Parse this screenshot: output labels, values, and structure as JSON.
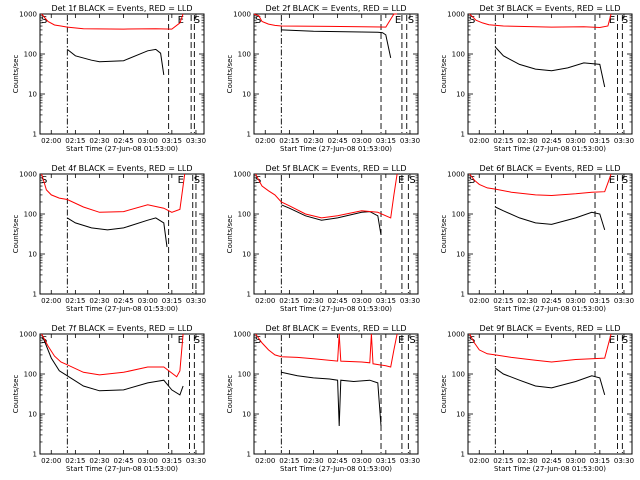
{
  "chart_data": [
    {
      "type": "line",
      "title": "Det 1f BLACK = Events, RED = LLD",
      "xlabel": "Start Time (27-Jun-08 01:53:00)",
      "ylabel": "Counts/sec",
      "yscale": "log",
      "ylim": [
        1,
        1000
      ],
      "xlim": [
        "01:53",
        "03:35"
      ],
      "xticks": [
        "02:00",
        "02:15",
        "02:30",
        "02:45",
        "03:00",
        "03:15",
        "03:30"
      ],
      "yticks": [
        "1",
        "10",
        "100",
        "1000"
      ],
      "markers": [
        {
          "label": "S",
          "x": "01:53"
        },
        {
          "label": "E",
          "x": "03:18"
        },
        {
          "label": "S",
          "x": "03:28"
        }
      ],
      "vlines": [
        {
          "x": "02:10",
          "style": "dashdot"
        },
        {
          "x": "03:13",
          "style": "dash"
        },
        {
          "x": "03:27",
          "style": "dash"
        },
        {
          "x": "03:29",
          "style": "dash"
        }
      ],
      "series": [
        {
          "color": "#000000",
          "x": [
            "02:10",
            "02:15",
            "02:25",
            "02:30",
            "02:45",
            "03:00",
            "03:05",
            "03:08",
            "03:10"
          ],
          "values": [
            130,
            90,
            70,
            64,
            68,
            120,
            130,
            105,
            30
          ]
        },
        {
          "color": "#ff0000",
          "x": [
            "01:54",
            "01:58",
            "02:02",
            "02:06",
            "02:10",
            "02:20",
            "02:45",
            "03:05",
            "03:15",
            "03:20",
            "03:22"
          ],
          "values": [
            1000,
            650,
            530,
            500,
            470,
            430,
            420,
            430,
            420,
            600,
            1000
          ]
        }
      ]
    },
    {
      "type": "line",
      "title": "Det 2f BLACK = Events, RED = LLD",
      "xlabel": "Start Time (27-Jun-08 01:53:00)",
      "ylabel": "Counts/sec",
      "yscale": "log",
      "ylim": [
        1,
        1000
      ],
      "xlim": [
        "01:53",
        "03:35"
      ],
      "xticks": [
        "02:00",
        "02:15",
        "02:30",
        "02:45",
        "03:00",
        "03:15",
        "03:30"
      ],
      "yticks": [
        "1",
        "10",
        "100",
        "1000"
      ],
      "markers": [
        {
          "label": "S",
          "x": "01:53"
        },
        {
          "label": "E",
          "x": "03:20"
        },
        {
          "label": "S",
          "x": "03:28"
        }
      ],
      "vlines": [
        {
          "x": "02:10",
          "style": "dashdot"
        },
        {
          "x": "03:12",
          "style": "dash"
        },
        {
          "x": "03:25",
          "style": "dash"
        },
        {
          "x": "03:28",
          "style": "dash"
        }
      ],
      "series": [
        {
          "color": "#000000",
          "x": [
            "02:10",
            "02:30",
            "02:50",
            "03:10",
            "03:13",
            "03:15",
            "03:18"
          ],
          "values": [
            400,
            370,
            360,
            350,
            340,
            300,
            80
          ]
        },
        {
          "color": "#ff0000",
          "x": [
            "01:53",
            "01:56",
            "01:58",
            "02:02",
            "02:06",
            "02:10",
            "02:40",
            "03:00",
            "03:15",
            "03:20",
            "03:22"
          ],
          "values": [
            1000,
            900,
            650,
            560,
            520,
            500,
            490,
            480,
            470,
            1000,
            1000
          ]
        }
      ]
    },
    {
      "type": "line",
      "title": "Det 3f BLACK = Events, RED = LLD",
      "xlabel": "Start Time (27-Jun-08 01:53:00)",
      "ylabel": "Counts/sec",
      "yscale": "log",
      "ylim": [
        1,
        1000
      ],
      "xlim": [
        "01:53",
        "03:35"
      ],
      "xticks": [
        "02:00",
        "02:15",
        "02:30",
        "02:45",
        "03:00",
        "03:15",
        "03:30"
      ],
      "yticks": [
        "1",
        "10",
        "100",
        "1000"
      ],
      "markers": [
        {
          "label": "S",
          "x": "01:53"
        },
        {
          "label": "E",
          "x": "03:20"
        },
        {
          "label": "S",
          "x": "03:28"
        }
      ],
      "vlines": [
        {
          "x": "02:10",
          "style": "dashdot"
        },
        {
          "x": "03:12",
          "style": "dash"
        },
        {
          "x": "03:26",
          "style": "dash"
        },
        {
          "x": "03:29",
          "style": "dash"
        }
      ],
      "series": [
        {
          "color": "#000000",
          "x": [
            "02:10",
            "02:15",
            "02:25",
            "02:35",
            "02:45",
            "02:55",
            "03:05",
            "03:15",
            "03:18"
          ],
          "values": [
            150,
            90,
            55,
            42,
            38,
            45,
            60,
            55,
            15
          ]
        },
        {
          "color": "#ff0000",
          "x": [
            "01:54",
            "01:58",
            "02:02",
            "02:06",
            "02:15",
            "02:45",
            "03:05",
            "03:15",
            "03:20",
            "03:22"
          ],
          "values": [
            1000,
            700,
            600,
            540,
            500,
            470,
            480,
            460,
            500,
            1000
          ]
        }
      ]
    },
    {
      "type": "line",
      "title": "Det 4f BLACK = Events, RED = LLD",
      "xlabel": "Start Time (27-Jun-08 01:53:00)",
      "ylabel": "Counts/sec",
      "yscale": "log",
      "ylim": [
        1,
        1000
      ],
      "xlim": [
        "01:53",
        "03:35"
      ],
      "xticks": [
        "02:00",
        "02:15",
        "02:30",
        "02:45",
        "03:00",
        "03:15",
        "03:30"
      ],
      "yticks": [
        "1",
        "10",
        "100",
        "1000"
      ],
      "markers": [
        {
          "label": "S",
          "x": "01:53"
        },
        {
          "label": "E",
          "x": "03:18"
        },
        {
          "label": "S",
          "x": "03:28"
        }
      ],
      "vlines": [
        {
          "x": "02:10",
          "style": "dashdot"
        },
        {
          "x": "03:13",
          "style": "dash"
        },
        {
          "x": "03:28",
          "style": "dash"
        },
        {
          "x": "03:30",
          "style": "dash"
        }
      ],
      "series": [
        {
          "color": "#000000",
          "x": [
            "02:10",
            "02:15",
            "02:25",
            "02:35",
            "02:45",
            "03:00",
            "03:05",
            "03:10",
            "03:12"
          ],
          "values": [
            80,
            60,
            45,
            40,
            45,
            70,
            80,
            60,
            15
          ]
        },
        {
          "color": "#ff0000",
          "x": [
            "01:54",
            "01:57",
            "02:00",
            "02:05",
            "02:10",
            "02:20",
            "02:30",
            "02:45",
            "03:00",
            "03:10",
            "03:15",
            "03:20",
            "03:23"
          ],
          "values": [
            1000,
            400,
            300,
            250,
            230,
            150,
            110,
            115,
            170,
            140,
            110,
            130,
            1000
          ]
        }
      ]
    },
    {
      "type": "line",
      "title": "Det 5f BLACK = Events, RED = LLD",
      "xlabel": "Start Time (27-Jun-08 01:53:00)",
      "ylabel": "Counts/sec",
      "yscale": "log",
      "ylim": [
        1,
        1000
      ],
      "xlim": [
        "01:53",
        "03:35"
      ],
      "xticks": [
        "02:00",
        "02:15",
        "02:30",
        "02:45",
        "03:00",
        "03:15",
        "03:30"
      ],
      "yticks": [
        "1",
        "10",
        "100",
        "1000"
      ],
      "markers": [
        {
          "label": "S",
          "x": "01:53"
        },
        {
          "label": "E",
          "x": "03:22"
        },
        {
          "label": "S",
          "x": "03:29"
        }
      ],
      "vlines": [
        {
          "x": "02:10",
          "style": "dashdot"
        },
        {
          "x": "03:12",
          "style": "dash"
        },
        {
          "x": "03:25",
          "style": "dash"
        },
        {
          "x": "03:29",
          "style": "dash"
        }
      ],
      "series": [
        {
          "color": "#000000",
          "x": [
            "02:10",
            "02:15",
            "02:25",
            "02:35",
            "02:45",
            "03:00",
            "03:05",
            "03:10",
            "03:12"
          ],
          "values": [
            170,
            140,
            90,
            70,
            80,
            110,
            115,
            90,
            30
          ]
        },
        {
          "color": "#ff0000",
          "x": [
            "01:54",
            "01:56",
            "01:58",
            "02:02",
            "02:06",
            "02:10",
            "02:15",
            "02:25",
            "02:35",
            "02:45",
            "03:00",
            "03:10",
            "03:18",
            "03:20",
            "03:22"
          ],
          "values": [
            1000,
            700,
            500,
            380,
            300,
            200,
            160,
            100,
            80,
            90,
            120,
            110,
            80,
            300,
            1000
          ]
        }
      ]
    },
    {
      "type": "line",
      "title": "Det 6f BLACK = Events, RED = LLD",
      "xlabel": "Start Time (27-Jun-08 01:53:00)",
      "ylabel": "Counts/sec",
      "yscale": "log",
      "ylim": [
        1,
        1000
      ],
      "xlim": [
        "01:53",
        "03:35"
      ],
      "xticks": [
        "02:00",
        "02:15",
        "02:30",
        "02:45",
        "03:00",
        "03:15",
        "03:30"
      ],
      "yticks": [
        "1",
        "10",
        "100",
        "1000"
      ],
      "markers": [
        {
          "label": "S",
          "x": "01:53"
        },
        {
          "label": "E",
          "x": "03:20"
        },
        {
          "label": "S",
          "x": "03:28"
        }
      ],
      "vlines": [
        {
          "x": "02:10",
          "style": "dashdot"
        },
        {
          "x": "03:12",
          "style": "dash"
        },
        {
          "x": "03:26",
          "style": "dash"
        },
        {
          "x": "03:29",
          "style": "dash"
        }
      ],
      "series": [
        {
          "color": "#000000",
          "x": [
            "02:10",
            "02:15",
            "02:25",
            "02:35",
            "02:45",
            "03:00",
            "03:10",
            "03:15",
            "03:18"
          ],
          "values": [
            150,
            120,
            80,
            60,
            55,
            80,
            110,
            100,
            40
          ]
        },
        {
          "color": "#ff0000",
          "x": [
            "01:54",
            "01:57",
            "02:00",
            "02:05",
            "02:10",
            "02:20",
            "02:35",
            "02:45",
            "03:00",
            "03:10",
            "03:18",
            "03:20",
            "03:22"
          ],
          "values": [
            1000,
            700,
            550,
            450,
            420,
            350,
            300,
            290,
            320,
            350,
            360,
            600,
            1000
          ]
        }
      ]
    },
    {
      "type": "line",
      "title": "Det 7f BLACK = Events, RED = LLD",
      "xlabel": "Start Time (27-Jun-08 01:53:00)",
      "ylabel": "Counts/sec",
      "yscale": "log",
      "ylim": [
        1,
        1000
      ],
      "xlim": [
        "01:53",
        "03:35"
      ],
      "xticks": [
        "02:00",
        "02:15",
        "02:30",
        "02:45",
        "03:00",
        "03:15",
        "03:30"
      ],
      "yticks": [
        "1",
        "10",
        "100",
        "1000"
      ],
      "markers": [
        {
          "label": "S",
          "x": "01:53"
        },
        {
          "label": "E",
          "x": "03:18"
        },
        {
          "label": "S",
          "x": "03:28"
        }
      ],
      "vlines": [
        {
          "x": "02:10",
          "style": "dashdot"
        },
        {
          "x": "03:13",
          "style": "dash"
        },
        {
          "x": "03:26",
          "style": "dash"
        },
        {
          "x": "03:29",
          "style": "dash"
        }
      ],
      "series": [
        {
          "color": "#000000",
          "x": [
            "01:55",
            "02:00",
            "02:05",
            "02:10",
            "02:20",
            "02:30",
            "02:45",
            "03:00",
            "03:10",
            "03:15",
            "03:20",
            "03:22"
          ],
          "values": [
            800,
            250,
            120,
            90,
            50,
            38,
            40,
            60,
            70,
            40,
            30,
            50
          ]
        },
        {
          "color": "#ff0000",
          "x": [
            "01:54",
            "01:58",
            "02:02",
            "02:06",
            "02:10",
            "02:20",
            "02:30",
            "02:45",
            "03:00",
            "03:10",
            "03:18",
            "03:20",
            "03:22"
          ],
          "values": [
            1000,
            500,
            280,
            200,
            170,
            110,
            95,
            110,
            150,
            150,
            85,
            120,
            1000
          ]
        }
      ]
    },
    {
      "type": "line",
      "title": "Det 8f BLACK = Events, RED = LLD",
      "xlabel": "Start Time (27-Jun-08 01:53:00)",
      "ylabel": "Counts/sec",
      "yscale": "log",
      "ylim": [
        1,
        1000
      ],
      "xlim": [
        "01:53",
        "03:35"
      ],
      "xticks": [
        "02:00",
        "02:15",
        "02:30",
        "02:45",
        "03:00",
        "03:15",
        "03:30"
      ],
      "yticks": [
        "1",
        "10",
        "100",
        "1000"
      ],
      "markers": [
        {
          "label": "S",
          "x": "01:53"
        },
        {
          "label": "E",
          "x": "03:22"
        },
        {
          "label": "S",
          "x": "03:29"
        }
      ],
      "vlines": [
        {
          "x": "02:10",
          "style": "dashdot"
        },
        {
          "x": "03:12",
          "style": "dash"
        },
        {
          "x": "03:25",
          "style": "dash"
        },
        {
          "x": "03:29",
          "style": "dash"
        }
      ],
      "series": [
        {
          "color": "#000000",
          "x": [
            "02:10",
            "02:20",
            "02:30",
            "02:40",
            "02:45",
            "02:46",
            "02:47",
            "02:55",
            "03:05",
            "03:10",
            "03:12"
          ],
          "values": [
            110,
            90,
            80,
            75,
            70,
            5,
            70,
            65,
            70,
            60,
            5
          ]
        },
        {
          "color": "#ff0000",
          "x": [
            "01:54",
            "01:58",
            "02:02",
            "02:06",
            "02:10",
            "02:20",
            "02:30",
            "02:45",
            "02:46",
            "02:47",
            "03:00",
            "03:05",
            "03:06",
            "03:07",
            "03:15",
            "03:18",
            "03:20",
            "03:22"
          ],
          "values": [
            1000,
            600,
            400,
            300,
            270,
            260,
            240,
            210,
            1000,
            210,
            200,
            190,
            1000,
            180,
            160,
            150,
            400,
            1000
          ]
        }
      ]
    },
    {
      "type": "line",
      "title": "Det 9f BLACK = Events, RED = LLD",
      "xlabel": "Start Time (27-Jun-08 01:53:00)",
      "ylabel": "Counts/sec",
      "yscale": "log",
      "ylim": [
        1,
        1000
      ],
      "xlim": [
        "01:53",
        "03:35"
      ],
      "xticks": [
        "02:00",
        "02:15",
        "02:30",
        "02:45",
        "03:00",
        "03:15",
        "03:30"
      ],
      "yticks": [
        "1",
        "10",
        "100",
        "1000"
      ],
      "markers": [
        {
          "label": "S",
          "x": "01:53"
        },
        {
          "label": "E",
          "x": "03:20"
        },
        {
          "label": "S",
          "x": "03:28"
        }
      ],
      "vlines": [
        {
          "x": "02:10",
          "style": "dashdot"
        },
        {
          "x": "03:12",
          "style": "dash"
        },
        {
          "x": "03:26",
          "style": "dash"
        },
        {
          "x": "03:29",
          "style": "dash"
        }
      ],
      "series": [
        {
          "color": "#000000",
          "x": [
            "02:10",
            "02:15",
            "02:25",
            "02:35",
            "02:45",
            "03:00",
            "03:10",
            "03:15",
            "03:18"
          ],
          "values": [
            140,
            100,
            70,
            50,
            45,
            65,
            90,
            80,
            30
          ]
        },
        {
          "color": "#ff0000",
          "x": [
            "01:54",
            "01:57",
            "02:00",
            "02:05",
            "02:10",
            "02:20",
            "02:35",
            "02:45",
            "03:00",
            "03:10",
            "03:18",
            "03:20",
            "03:22"
          ],
          "values": [
            1000,
            600,
            400,
            320,
            300,
            260,
            220,
            200,
            230,
            240,
            250,
            500,
            1000
          ]
        }
      ]
    }
  ]
}
